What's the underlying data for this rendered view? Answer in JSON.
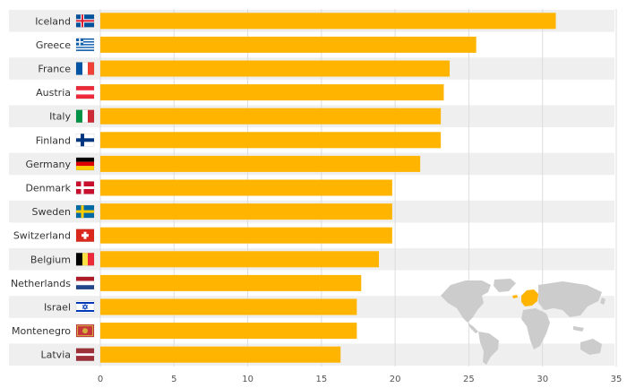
{
  "colors": {
    "bar": "#FFB400",
    "row_band": "#EFEFEF",
    "grid": "#DDDDDD",
    "map_land": "#CCCCCC",
    "map_highlight": "#FFB400"
  },
  "chart_data": {
    "type": "bar",
    "orientation": "horizontal",
    "title": "",
    "xlabel": "",
    "ylabel": "",
    "categories": [
      "Iceland",
      "Greece",
      "France",
      "Austria",
      "Italy",
      "Finland",
      "Germany",
      "Denmark",
      "Sweden",
      "Switzerland",
      "Belgium",
      "Netherlands",
      "Israel",
      "Montenegro",
      "Latvia"
    ],
    "values": [
      30.9,
      25.5,
      23.7,
      23.3,
      23.1,
      23.1,
      21.7,
      19.8,
      19.8,
      19.8,
      18.9,
      17.7,
      17.4,
      17.4,
      16.3
    ],
    "flag_icons": [
      "iceland-flag-icon",
      "greece-flag-icon",
      "france-flag-icon",
      "austria-flag-icon",
      "italy-flag-icon",
      "finland-flag-icon",
      "germany-flag-icon",
      "denmark-flag-icon",
      "sweden-flag-icon",
      "switzerland-flag-icon",
      "belgium-flag-icon",
      "netherlands-flag-icon",
      "israel-flag-icon",
      "montenegro-flag-icon",
      "latvia-flag-icon"
    ],
    "xlim": [
      0,
      35
    ],
    "xticks": [
      "0",
      "5",
      "10",
      "15",
      "20",
      "25",
      "30",
      "35"
    ],
    "grid": true,
    "legend": "none",
    "inset": "world-map-europe-highlighted"
  }
}
